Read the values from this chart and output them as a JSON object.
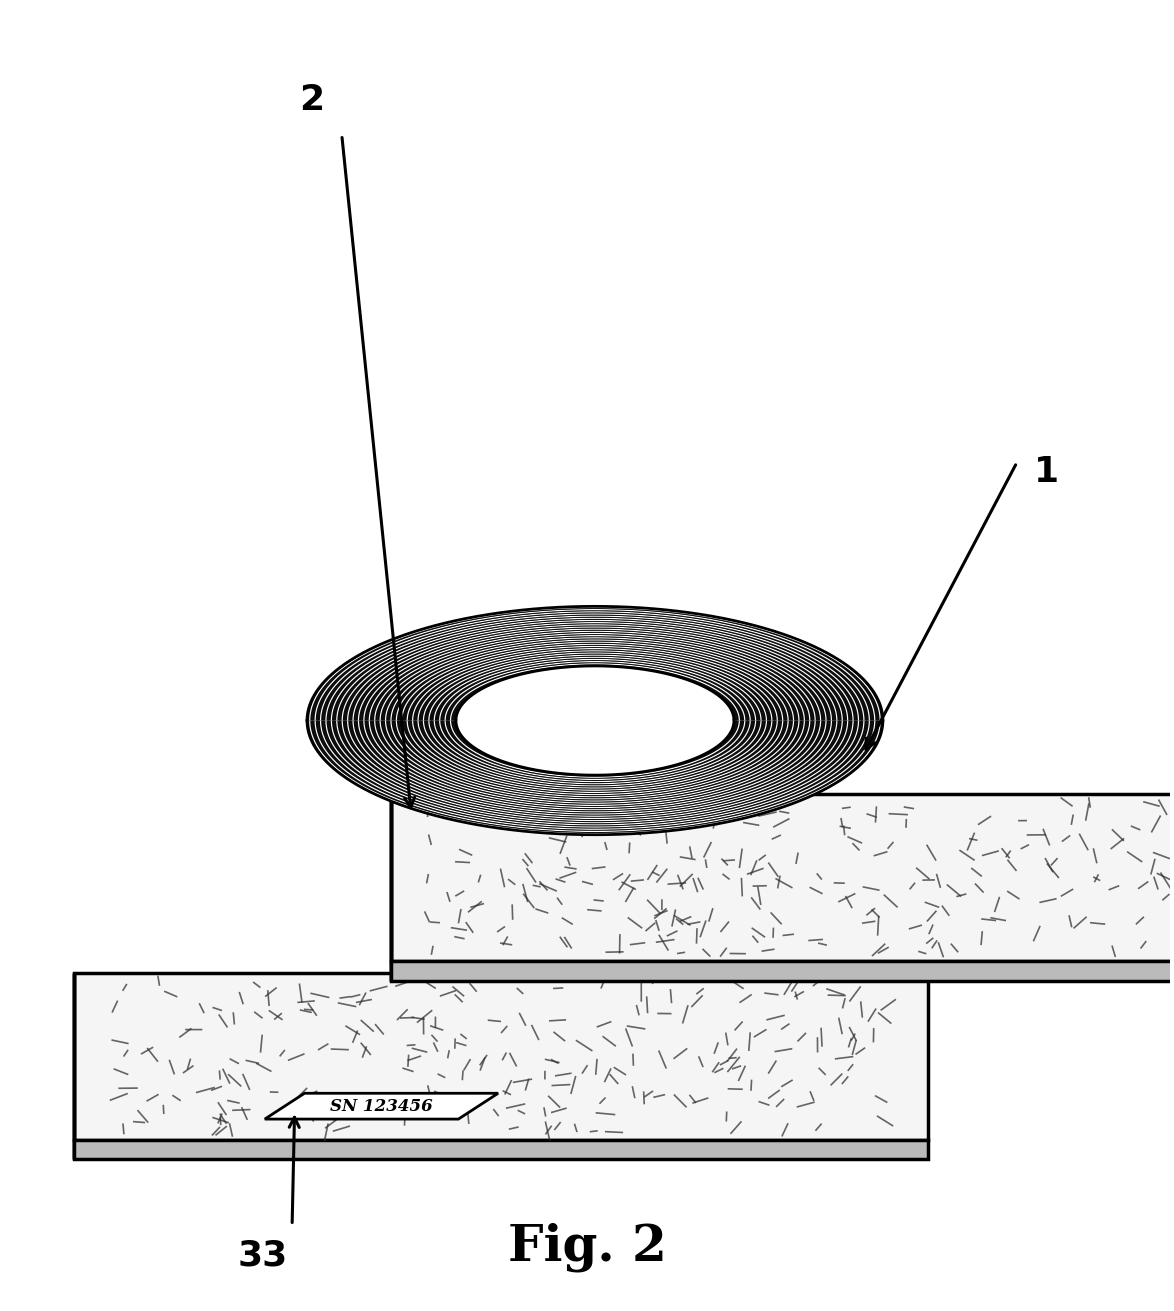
{
  "title": "Fig. 2",
  "title_fontsize": 36,
  "label_1": "1",
  "label_2": "2",
  "label_33": "33",
  "sn_text": "SN 123456",
  "bg_color": "#ffffff",
  "plate_color": "#f5f5f5",
  "plate_edge_color": "#000000",
  "coil_dark": "#0a0a0a",
  "coil_mid": "#666666",
  "coil_light": "#ffffff",
  "dash_color": "#333333",
  "plate_lw": 2.5,
  "coil_tube_ratio": 0.38,
  "n_windings": 55,
  "n_dashes": 250
}
